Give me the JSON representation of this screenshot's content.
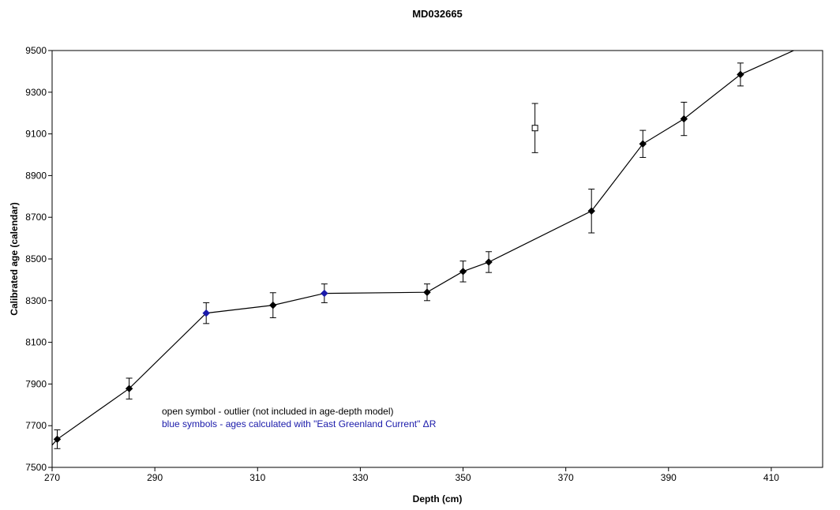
{
  "chart_data": {
    "type": "scatter",
    "title": "MD032665",
    "xlabel": "Depth (cm)",
    "ylabel": "Calibrated age (calendar)",
    "xlim": [
      270,
      420
    ],
    "ylim": [
      7500,
      9500
    ],
    "x_ticks": [
      270,
      290,
      310,
      330,
      350,
      370,
      390,
      410
    ],
    "y_ticks": [
      7500,
      7700,
      7900,
      8100,
      8300,
      8500,
      8700,
      8900,
      9100,
      9300,
      9500
    ],
    "grid": false,
    "legend": "none",
    "series": [
      {
        "marker": "filled-diamond",
        "color": "#000000",
        "connected": true,
        "points": [
          {
            "x": 271,
            "y": 7635,
            "err": 45
          },
          {
            "x": 285,
            "y": 7878,
            "err": 50
          },
          {
            "x": 313,
            "y": 8278,
            "err": 60
          },
          {
            "x": 343,
            "y": 8340,
            "err": 40
          },
          {
            "x": 350,
            "y": 8440,
            "err": 50
          },
          {
            "x": 355,
            "y": 8485,
            "err": 50
          },
          {
            "x": 375,
            "y": 8730,
            "err": 105
          },
          {
            "x": 385,
            "y": 9052,
            "err": 65
          },
          {
            "x": 393,
            "y": 9172,
            "err": 80
          },
          {
            "x": 404,
            "y": 9385,
            "err": 55
          }
        ]
      },
      {
        "marker": "filled-diamond",
        "color": "#1a1aaa",
        "connected": true,
        "points": [
          {
            "x": 300,
            "y": 8240,
            "err": 50
          },
          {
            "x": 323,
            "y": 8335,
            "err": 45
          }
        ]
      },
      {
        "marker": "open-square",
        "color": "#000000",
        "connected": false,
        "points": [
          {
            "x": 364,
            "y": 9128,
            "err": 118
          }
        ]
      }
    ],
    "model_line": {
      "color": "#000000",
      "points": [
        {
          "x": 269.7,
          "y": 7598
        },
        {
          "x": 271,
          "y": 7635
        },
        {
          "x": 285,
          "y": 7878
        },
        {
          "x": 300,
          "y": 8240
        },
        {
          "x": 313,
          "y": 8278
        },
        {
          "x": 323,
          "y": 8335
        },
        {
          "x": 343,
          "y": 8340
        },
        {
          "x": 350,
          "y": 8440
        },
        {
          "x": 355,
          "y": 8485
        },
        {
          "x": 375,
          "y": 8730
        },
        {
          "x": 385,
          "y": 9052
        },
        {
          "x": 393,
          "y": 9172
        },
        {
          "x": 404,
          "y": 9385
        },
        {
          "x": 416,
          "y": 9518
        }
      ]
    },
    "annotations": [
      {
        "text": "open symbol - outlier (not included in age-depth model)",
        "color": "#000000"
      },
      {
        "text": "blue symbols - ages calculated with \"East Greenland Current\" ΔR",
        "color": "#1a1aaa"
      }
    ]
  }
}
